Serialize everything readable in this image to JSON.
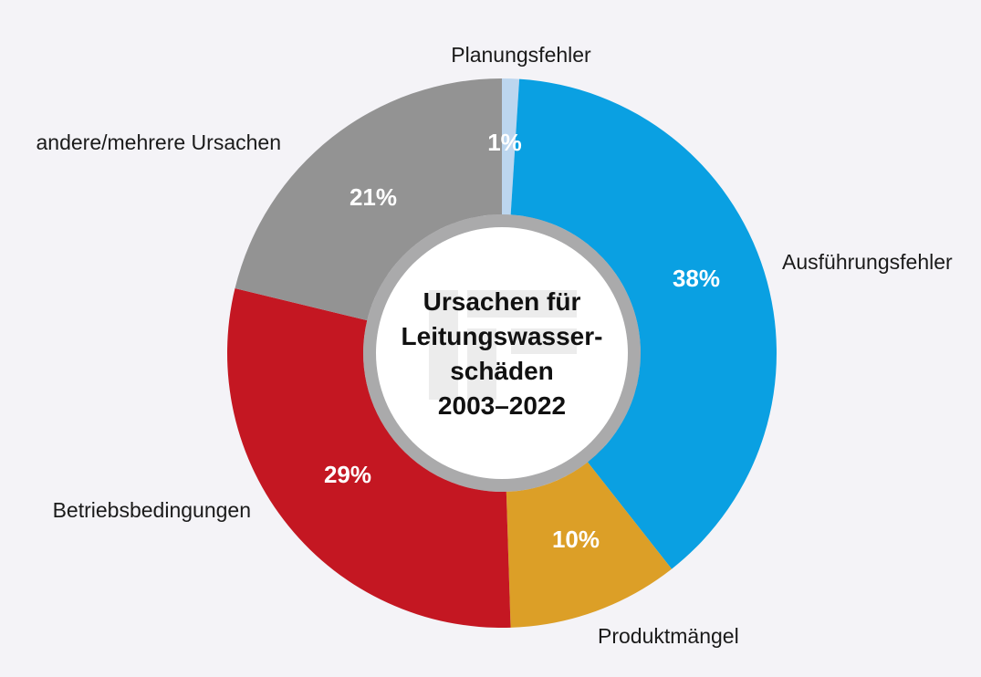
{
  "chart_data": {
    "type": "pie",
    "title_lines": [
      "Ursachen für",
      "Leitungswasser-",
      "schäden",
      "2003–2022"
    ],
    "slices": [
      {
        "label": "Planungsfehler",
        "value": 1,
        "value_label": "1%",
        "color": "#bcd6ef"
      },
      {
        "label": "Ausführungsfehler",
        "value": 38,
        "value_label": "38%",
        "color": "#0aa0e2"
      },
      {
        "label": "Produktmängel",
        "value": 10,
        "value_label": "10%",
        "color": "#dc9f27"
      },
      {
        "label": "Betriebsbedingungen",
        "value": 29,
        "value_label": "29%",
        "color": "#c41722"
      },
      {
        "label": "andere/mehrere Ursachen",
        "value": 21,
        "value_label": "21%",
        "color": "#939393"
      }
    ],
    "start": "top, clockwise",
    "legend": "none (direct labels)"
  }
}
